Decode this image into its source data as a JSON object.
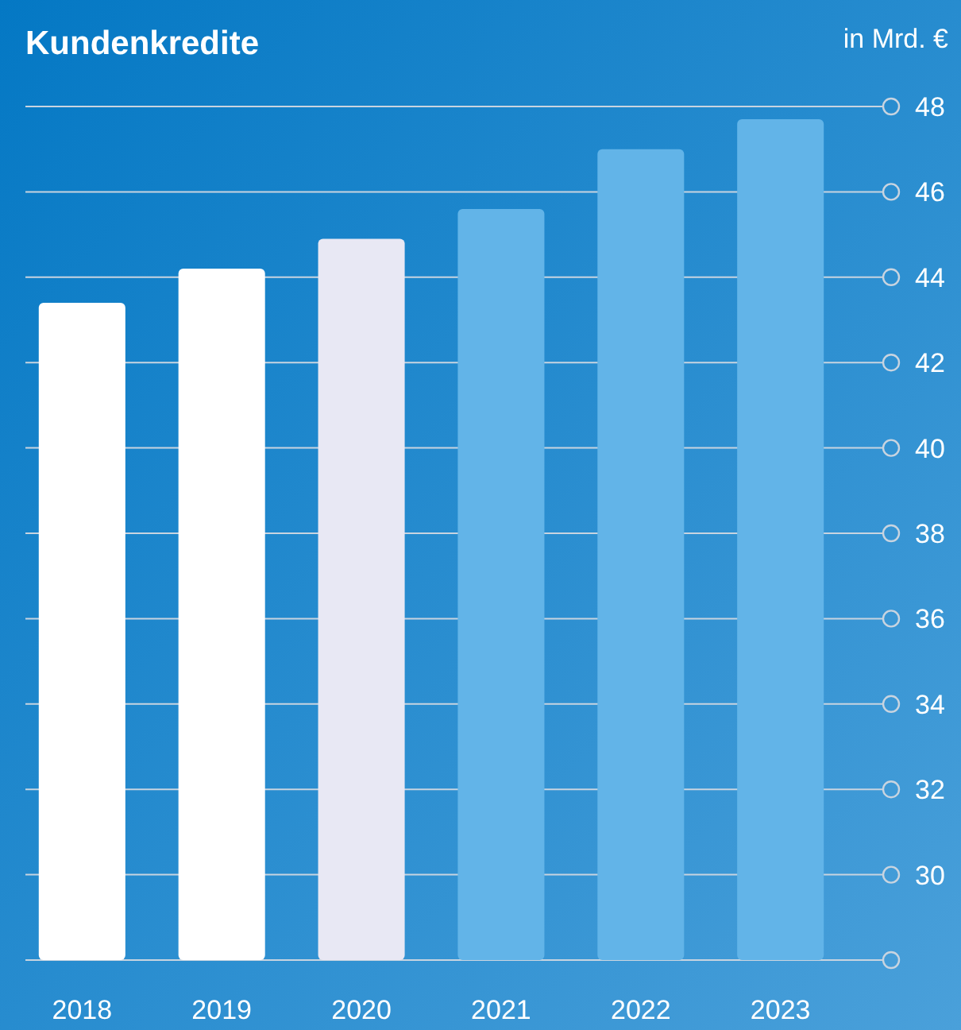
{
  "chart_data": {
    "type": "bar",
    "title": "Kundenkredite",
    "ylabel": "in Mrd. €",
    "categories": [
      "2018",
      "2019",
      "2020",
      "2021",
      "2022",
      "2023"
    ],
    "values": [
      43.4,
      44.2,
      44.9,
      45.6,
      47.0,
      47.7
    ],
    "colors": [
      "#ffffff",
      "#ffffff",
      "#e8e8f4",
      "#62b4e8",
      "#62b4e8",
      "#62b4e8"
    ],
    "ylim": [
      28,
      48
    ],
    "yticks": [
      {
        "value": 28,
        "label": null
      },
      30,
      32,
      34,
      36,
      38,
      40,
      42,
      44,
      46,
      48
    ],
    "grid": "y"
  }
}
